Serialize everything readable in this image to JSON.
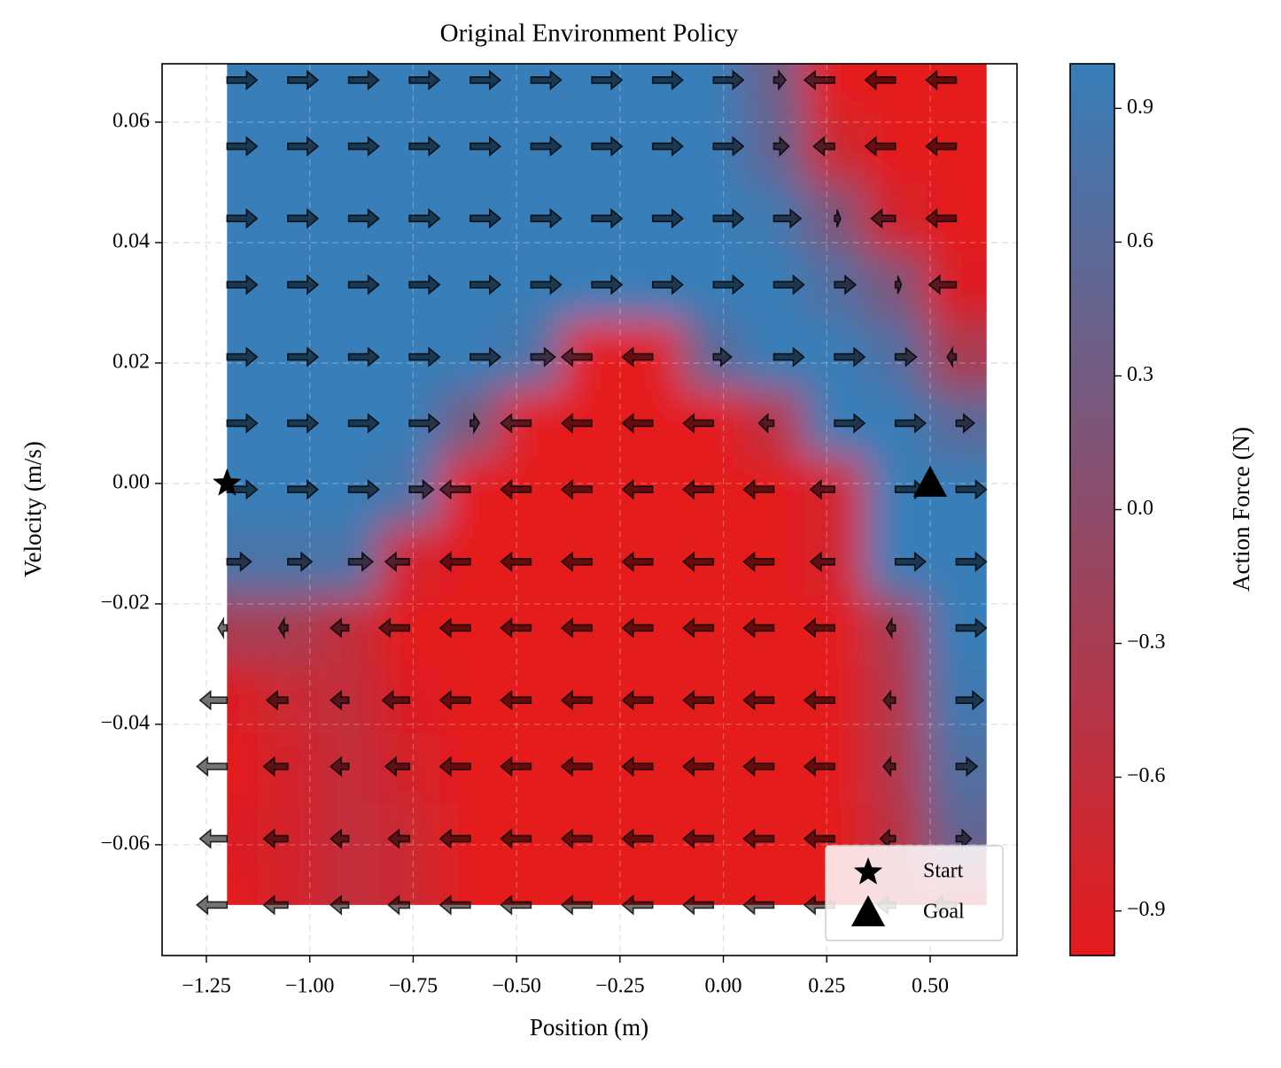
{
  "chart_data": {
    "type": "contour",
    "title": "Original Environment Policy",
    "x_label": "Position (m)",
    "y_label": "Velocity (m/s)",
    "colorbar_label": "Action Force (N)",
    "position": [
      -1.2,
      -1.053,
      -0.906,
      -0.759,
      -0.612,
      -0.465,
      -0.318,
      -0.171,
      -0.024,
      0.122,
      0.269,
      0.416,
      0.563
    ],
    "velocity": [
      -0.07,
      -0.059,
      -0.047,
      -0.036,
      -0.024,
      -0.013,
      -0.001,
      0.01,
      0.021,
      0.033,
      0.044,
      0.056,
      0.067
    ],
    "values": [
      [
        -1,
        -0.8,
        -0.6,
        -0.7,
        -1,
        -1,
        -1,
        -1,
        -1,
        -1,
        -1,
        -0.6,
        -0.8
      ],
      [
        -0.9,
        -0.8,
        -0.6,
        -0.7,
        -1,
        -1,
        -1,
        -1,
        -1,
        -1,
        -1,
        -0.5,
        0.5
      ],
      [
        -1,
        -0.8,
        -0.6,
        -0.8,
        -1,
        -1,
        -1,
        -1,
        -1,
        -1,
        -1,
        -0.4,
        0.7
      ],
      [
        -0.9,
        -0.7,
        -0.6,
        -0.9,
        -1,
        -1,
        -1,
        -1,
        -1,
        -1,
        -1,
        -0.4,
        0.9
      ],
      [
        -0.3,
        -0.3,
        -0.6,
        -1,
        -1,
        -1,
        -1,
        -1,
        -1,
        -1,
        -1,
        -0.3,
        1
      ],
      [
        0.8,
        0.8,
        0.8,
        -0.8,
        -1,
        -1,
        -1,
        -1,
        -1,
        -1,
        -0.8,
        1,
        1
      ],
      [
        1,
        1,
        1,
        0.8,
        -1,
        -1,
        -1,
        -1,
        -1,
        -1,
        -0.8,
        1,
        1
      ],
      [
        1,
        1,
        1,
        1,
        0.3,
        -1,
        -1,
        -1,
        -1,
        -0.5,
        1,
        1,
        0.6
      ],
      [
        1,
        1,
        1,
        1,
        1,
        0.8,
        -1,
        -1,
        0.6,
        1,
        1,
        0.7,
        -0.3
      ],
      [
        1,
        1,
        1,
        1,
        1,
        1,
        1,
        1,
        1,
        1,
        0.7,
        0.2,
        -0.9
      ],
      [
        1,
        1,
        1,
        1,
        1,
        1,
        1,
        1,
        1,
        0.9,
        0.2,
        -0.8,
        -1
      ],
      [
        1,
        1,
        1,
        1,
        1,
        1,
        1,
        1,
        1,
        0.5,
        -0.7,
        -1,
        -1
      ],
      [
        1,
        1,
        1,
        1,
        1,
        1,
        1,
        1,
        1,
        0.4,
        -1,
        -1,
        -1
      ]
    ],
    "colormap": [
      "#e41a1c",
      "#377eb8"
    ],
    "clim": [
      -1,
      1
    ],
    "cticks": [
      {
        "value": -0.9,
        "label": "−0.9"
      },
      {
        "value": -0.6,
        "label": "−0.6"
      },
      {
        "value": -0.3,
        "label": "−0.3"
      },
      {
        "value": 0,
        "label": "0.0"
      },
      0.3,
      0.6,
      0.9
    ],
    "xlim": [
      -1.357,
      0.71
    ],
    "ylim": [
      -0.0784,
      0.0697
    ],
    "xticks": [
      {
        "value": -1.25,
        "label": "−1.25"
      },
      {
        "value": -1,
        "label": "−1.00"
      },
      {
        "value": -0.75,
        "label": "−0.75"
      },
      {
        "value": -0.5,
        "label": "−0.50"
      },
      {
        "value": -0.25,
        "label": "−0.25"
      },
      {
        "value": 0,
        "label": "0.00"
      },
      0.25,
      {
        "value": 0.5,
        "label": "0.50"
      }
    ],
    "yticks": [
      {
        "value": -0.06,
        "label": "−0.06"
      },
      {
        "value": -0.04,
        "label": "−0.04"
      },
      {
        "value": -0.02,
        "label": "−0.02"
      },
      {
        "value": 0,
        "label": "0.00"
      },
      0.02,
      0.04,
      0.06
    ],
    "grid": true,
    "markers": [
      {
        "name": "Start",
        "x": -1.2,
        "y": 0,
        "shape": "star"
      },
      {
        "name": "Goal",
        "x": 0.5,
        "y": 0,
        "shape": "triangle"
      }
    ],
    "legend": "lower right"
  }
}
